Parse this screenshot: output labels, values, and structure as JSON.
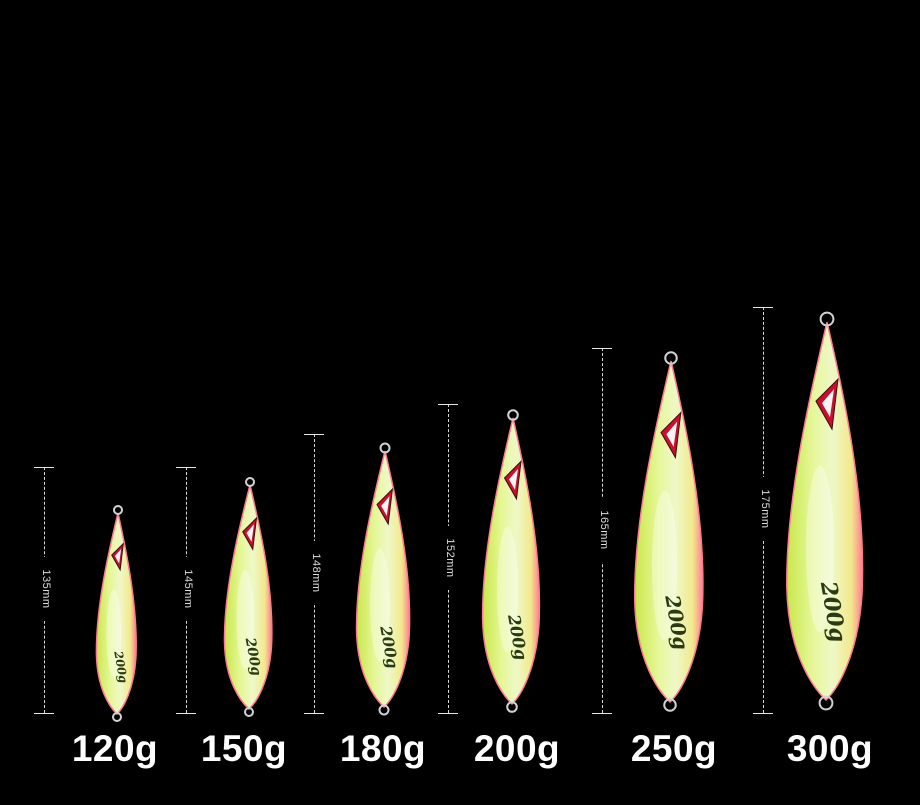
{
  "jigs": [
    {
      "weight": "120g",
      "length": "135mm",
      "stamp": "200g"
    },
    {
      "weight": "150g",
      "length": "145mm",
      "stamp": "200g"
    },
    {
      "weight": "180g",
      "length": "148mm",
      "stamp": "200g"
    },
    {
      "weight": "200g",
      "length": "152mm",
      "stamp": "200g"
    },
    {
      "weight": "250g",
      "length": "165mm",
      "stamp": "200g"
    },
    {
      "weight": "300g",
      "length": "175mm",
      "stamp": "200g"
    }
  ],
  "colors": {
    "background": "#000000",
    "body_glow": "#eef7c4",
    "body_yellow": "#d8f26a",
    "edge_pink": "#ff6f8a",
    "eye_red": "#c8102e"
  }
}
